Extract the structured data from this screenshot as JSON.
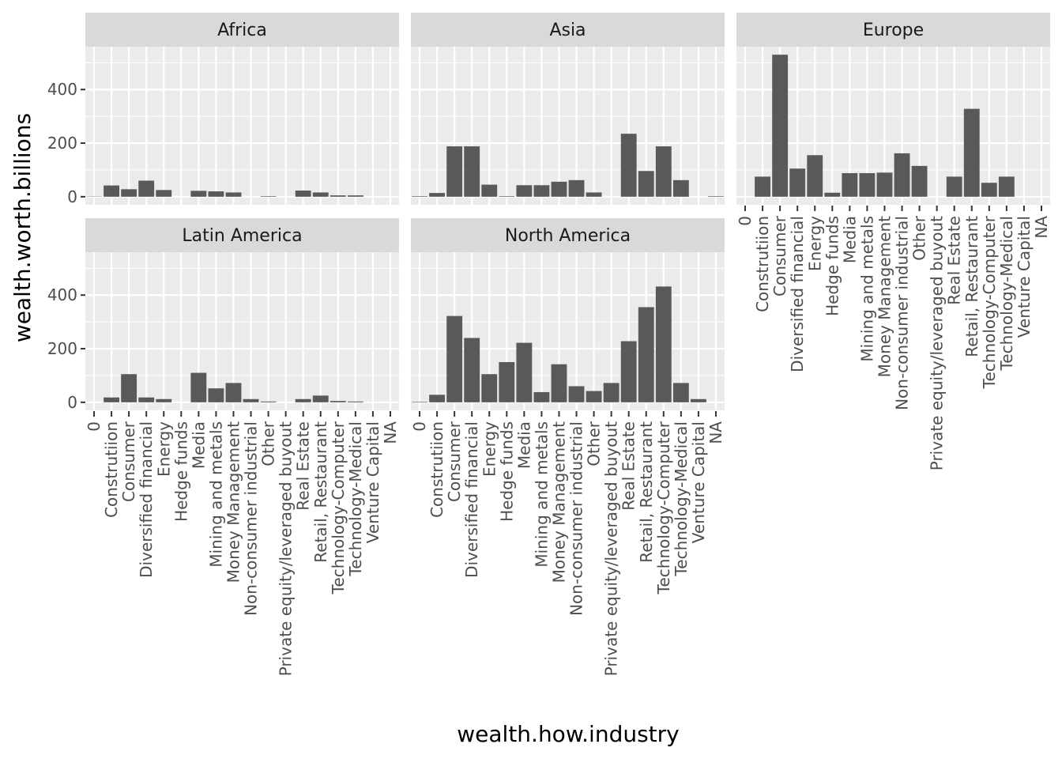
{
  "chart_data": {
    "type": "bar",
    "xlabel": "wealth.how.industry",
    "ylabel": "wealth.worth.billions",
    "ylim": [
      -30,
      560
    ],
    "yticks": [
      0,
      200,
      400
    ],
    "grid": true,
    "categories": [
      "0",
      "Construtiion",
      "Consumer",
      "Diversified financial",
      "Energy",
      "Hedge funds",
      "Media",
      "Mining and metals",
      "Money Management",
      "Non-consumer industrial",
      "Other",
      "Private equity/leveraged buyout",
      "Real Estate",
      "Retail, Restaurant",
      "Technology-Computer",
      "Technology-Medical",
      "Venture Capital",
      "NA"
    ],
    "facets": [
      {
        "name": "Africa",
        "values": [
          1,
          42,
          28,
          60,
          25,
          0,
          22,
          20,
          16,
          0,
          2,
          0,
          23,
          16,
          5,
          5,
          0,
          0
        ]
      },
      {
        "name": "Asia",
        "values": [
          2,
          14,
          188,
          188,
          45,
          2,
          43,
          43,
          56,
          62,
          16,
          0,
          235,
          96,
          188,
          62,
          0,
          2
        ]
      },
      {
        "name": "Europe",
        "values": [
          0,
          75,
          530,
          105,
          155,
          15,
          88,
          88,
          90,
          162,
          115,
          0,
          75,
          328,
          52,
          75,
          0,
          0
        ]
      },
      {
        "name": "Latin America",
        "values": [
          0,
          18,
          105,
          18,
          12,
          0,
          110,
          52,
          72,
          12,
          3,
          0,
          12,
          25,
          5,
          3,
          0,
          0
        ]
      },
      {
        "name": "North America",
        "values": [
          2,
          28,
          322,
          240,
          105,
          150,
          222,
          38,
          142,
          60,
          42,
          72,
          228,
          355,
          432,
          72,
          12,
          0
        ]
      }
    ]
  }
}
